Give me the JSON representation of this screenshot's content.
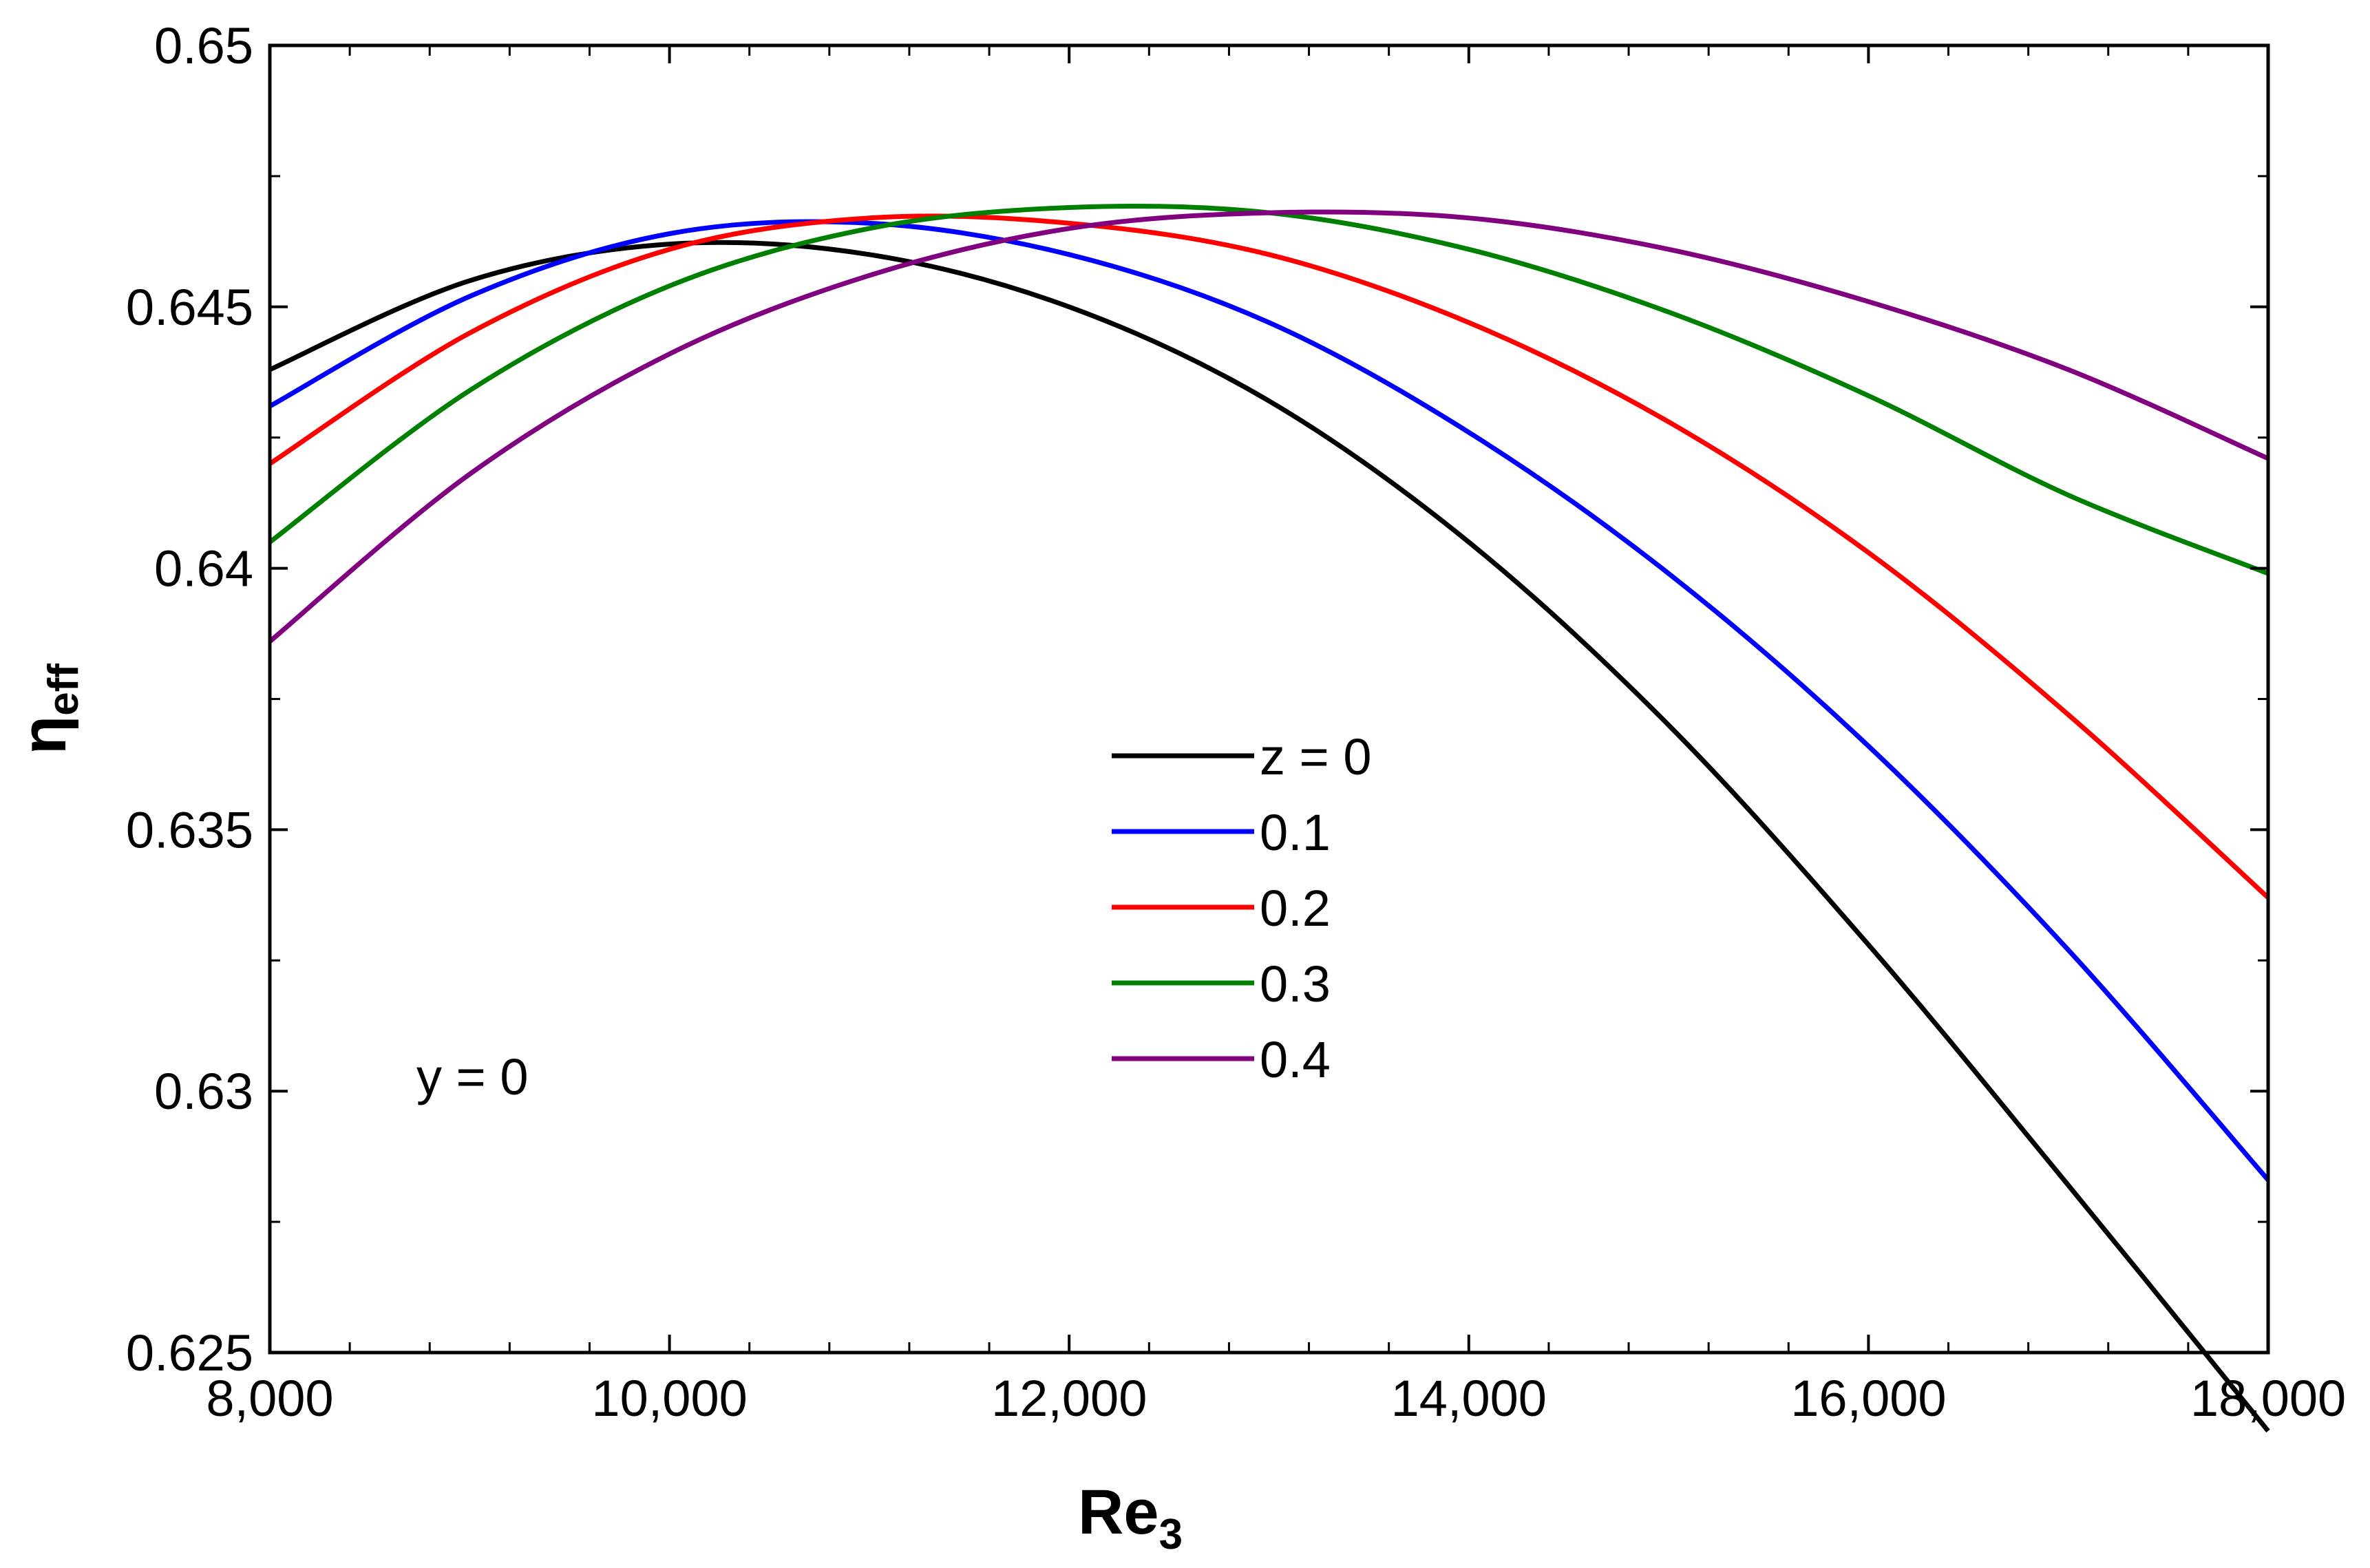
{
  "chart_data": {
    "type": "line",
    "title": "",
    "xlabel": {
      "main": "Re",
      "sub": "3"
    },
    "ylabel": {
      "main": "η",
      "sub": "eff"
    },
    "xlim": [
      8000,
      18000
    ],
    "ylim": [
      0.625,
      0.65
    ],
    "x_ticks": [
      8000,
      10000,
      12000,
      14000,
      16000,
      18000
    ],
    "x_tick_labels": [
      "8,000",
      "10,000",
      "12,000",
      "14,000",
      "16,000",
      "18,000"
    ],
    "x_minor_step": 400,
    "y_ticks": [
      0.625,
      0.63,
      0.635,
      0.64,
      0.645,
      0.65
    ],
    "y_tick_labels": [
      "0.625",
      "0.63",
      "0.635",
      "0.64",
      "0.645",
      "0.65"
    ],
    "y_minor_step": 0.0025,
    "grid": false,
    "legend_position": "center",
    "annotation": "y = 0",
    "x": [
      8000,
      9000,
      10000,
      11000,
      12000,
      13000,
      14000,
      15000,
      16000,
      17000,
      18000
    ],
    "series": [
      {
        "name": "z = 0",
        "color": "#000000",
        "values": [
          0.6438,
          0.6455,
          0.6462,
          0.646,
          0.645,
          0.6432,
          0.6405,
          0.637,
          0.6328,
          0.6282,
          0.6235
        ]
      },
      {
        "name": "0.1",
        "color": "#0000ff",
        "values": [
          0.6431,
          0.6452,
          0.6464,
          0.6466,
          0.646,
          0.6447,
          0.6426,
          0.6399,
          0.6366,
          0.6327,
          0.6283
        ]
      },
      {
        "name": "0.2",
        "color": "#ff0000",
        "values": [
          0.642,
          0.6445,
          0.6461,
          0.6467,
          0.6466,
          0.646,
          0.6447,
          0.6428,
          0.6403,
          0.6372,
          0.6337
        ]
      },
      {
        "name": "0.3",
        "color": "#008000",
        "values": [
          0.6405,
          0.6434,
          0.6454,
          0.6465,
          0.6469,
          0.6468,
          0.6461,
          0.6449,
          0.6433,
          0.6414,
          0.6399
        ]
      },
      {
        "name": "0.4",
        "color": "#800080",
        "values": [
          0.6386,
          0.6418,
          0.6441,
          0.6456,
          0.6465,
          0.6468,
          0.6467,
          0.6461,
          0.6451,
          0.6438,
          0.6421
        ]
      }
    ]
  }
}
